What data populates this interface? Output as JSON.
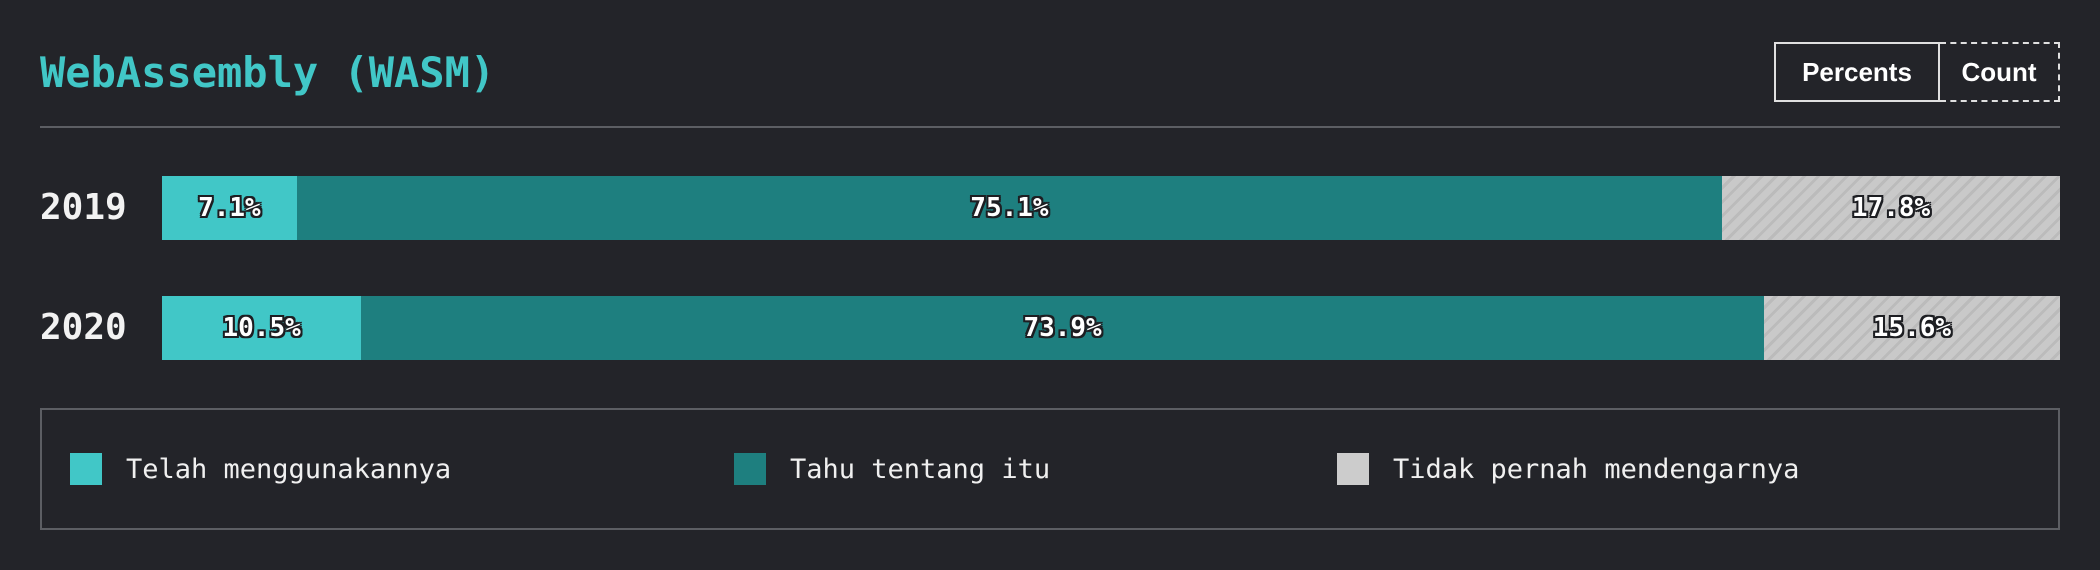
{
  "chart_data": {
    "type": "bar",
    "orientation": "horizontal",
    "stacked": true,
    "normalized": true,
    "title": "WebAssembly (WASM)",
    "categories": [
      "2019",
      "2020"
    ],
    "series": [
      {
        "name": "Telah menggunakannya",
        "values": [
          7.1,
          10.5
        ],
        "labels": [
          "7.1%",
          "10.5%"
        ],
        "color": "#41c7c7"
      },
      {
        "name": "Tahu tentang itu",
        "values": [
          75.1,
          73.9
        ],
        "labels": [
          "75.1%",
          "73.9%"
        ],
        "color": "#1e7f7f"
      },
      {
        "name": "Tidak pernah mendengarnya",
        "values": [
          17.8,
          15.6
        ],
        "labels": [
          "17.8%",
          "15.6%"
        ],
        "color": "#c9c9c9",
        "pattern": "hatched"
      }
    ],
    "legend_position": "bottom",
    "grid": false
  },
  "controls": {
    "percents_label": "Percents",
    "count_label": "Count",
    "active": "percents"
  }
}
